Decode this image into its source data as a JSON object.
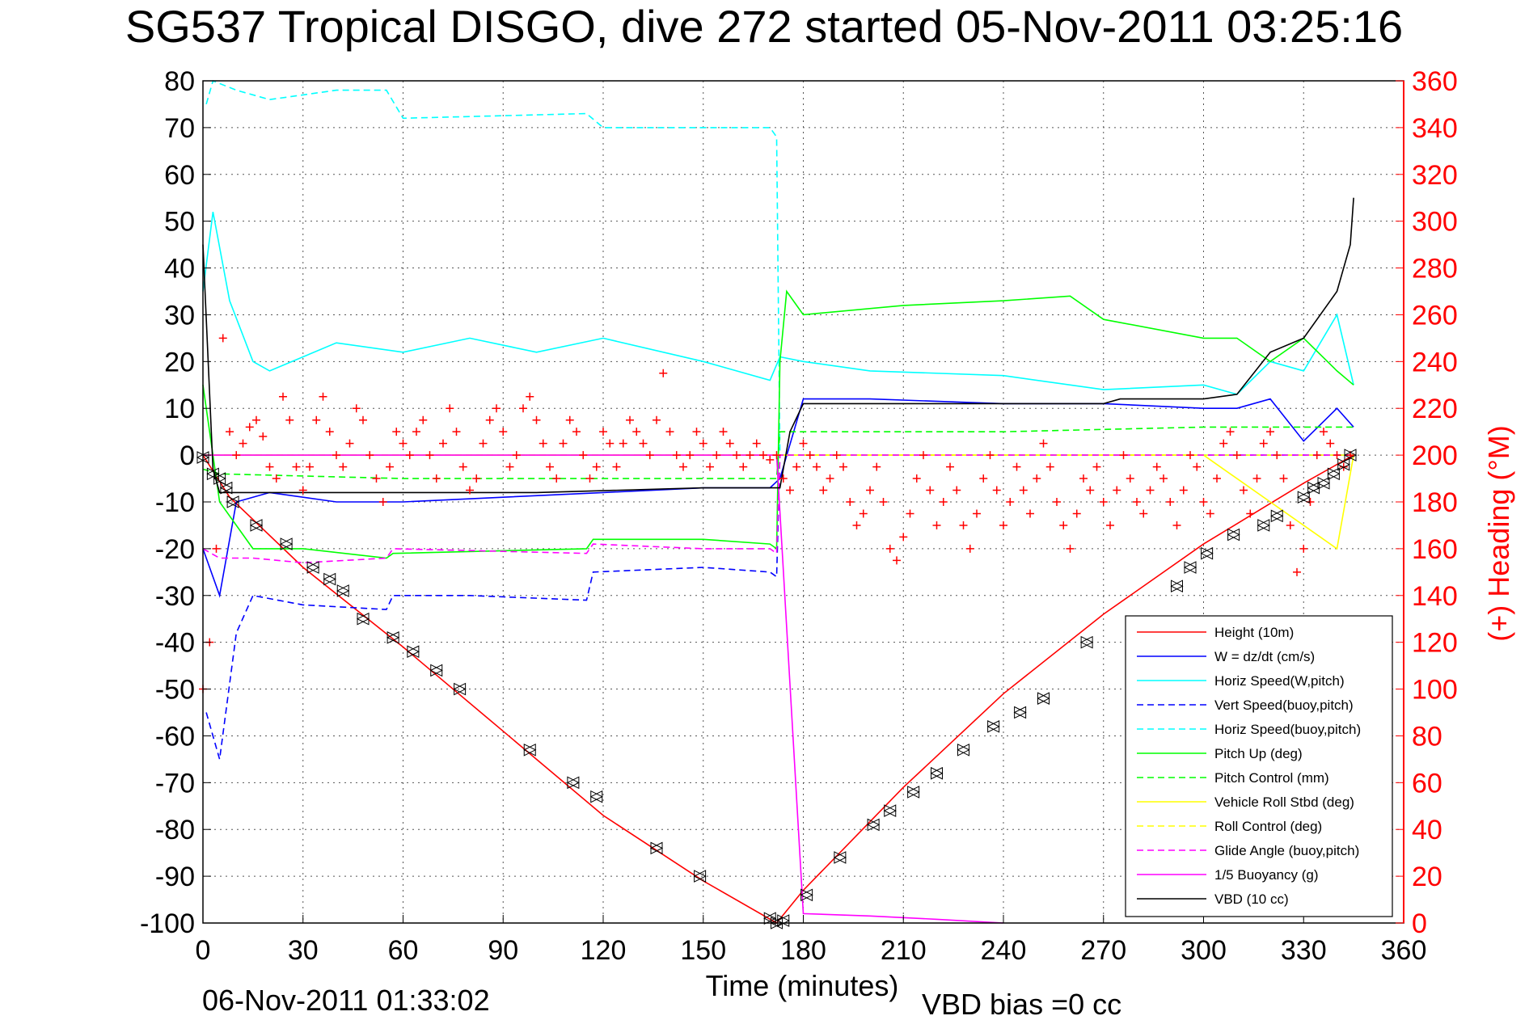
{
  "chart_data": {
    "type": "line",
    "title": "SG537 Tropical DISGO, dive 272 started 05-Nov-2011 03:25:16",
    "xlabel": "Time (minutes)",
    "ylabel_right": "(+) Heading (°M)",
    "footer_left": "06-Nov-2011 01:33:02",
    "footer_right": "VBD bias =0 cc",
    "xlim": [
      0,
      360
    ],
    "ylim": [
      -100,
      80
    ],
    "ylim_right": [
      0,
      360
    ],
    "xticks": [
      "0",
      "30",
      "60",
      "90",
      "120",
      "150",
      "180",
      "210",
      "240",
      "270",
      "300",
      "330",
      "360"
    ],
    "yticks": [
      "80",
      "70",
      "60",
      "50",
      "40",
      "30",
      "20",
      "10",
      "0",
      "-10",
      "-20",
      "-30",
      "-40",
      "-50",
      "-60",
      "-70",
      "-80",
      "-90",
      "-100"
    ],
    "yticks_right": [
      "360",
      "340",
      "320",
      "300",
      "280",
      "260",
      "240",
      "220",
      "200",
      "180",
      "160",
      "140",
      "120",
      "100",
      "80",
      "60",
      "40",
      "20",
      "0"
    ],
    "grid": true,
    "legend_position": "bottom-right",
    "colors": {
      "height": "#ff0000",
      "w": "#0000ff",
      "horiz_speed": "#00ffff",
      "pitch": "#00ff00",
      "roll": "#ffff00",
      "glide": "#ff00ff",
      "vbd": "#000000",
      "heading": "#ff0000"
    },
    "series": [
      {
        "name": "Height (10m)",
        "color": "#ff0000",
        "dash": "solid",
        "x": [
          0,
          8,
          30,
          60,
          90,
          120,
          150,
          172,
          180,
          210,
          240,
          270,
          300,
          330,
          345
        ],
        "y": [
          0,
          -9,
          -24,
          -41,
          -59,
          -77,
          -91,
          -100,
          -93,
          -71,
          -51,
          -34,
          -19,
          -6,
          0
        ]
      },
      {
        "name": "W = dz/dt (cm/s)",
        "color": "#0000ff",
        "dash": "solid",
        "x": [
          0,
          5,
          10,
          20,
          40,
          60,
          90,
          120,
          150,
          170,
          173,
          180,
          200,
          240,
          270,
          300,
          310,
          320,
          330,
          340,
          345
        ],
        "y": [
          -20,
          -30,
          -10,
          -8,
          -10,
          -10,
          -9,
          -8,
          -7,
          -7,
          -5,
          12,
          12,
          11,
          11,
          10,
          10,
          12,
          3,
          10,
          6
        ]
      },
      {
        "name": "Horiz Speed(W,pitch)",
        "color": "#00ffff",
        "dash": "solid",
        "x": [
          0,
          3,
          8,
          15,
          20,
          40,
          60,
          80,
          100,
          120,
          150,
          170,
          173,
          180,
          200,
          240,
          270,
          300,
          310,
          320,
          330,
          340,
          345
        ],
        "y": [
          35,
          52,
          33,
          20,
          18,
          24,
          22,
          25,
          22,
          25,
          20,
          16,
          21,
          20,
          18,
          17,
          14,
          15,
          13,
          20,
          18,
          30,
          15
        ]
      },
      {
        "name": "Vert Speed(buoy,pitch)",
        "color": "#0000ff",
        "dash": "dashed",
        "x": [
          1,
          5,
          10,
          15,
          30,
          55,
          57,
          80,
          115,
          117,
          150,
          170,
          172,
          173,
          345
        ],
        "y": [
          -55,
          -65,
          -38,
          -30,
          -32,
          -33,
          -30,
          -30,
          -31,
          -25,
          -24,
          -25,
          -26,
          0,
          0
        ]
      },
      {
        "name": "Horiz Speed(buoy,pitch)",
        "color": "#00ffff",
        "dash": "dashed",
        "x": [
          1,
          3,
          10,
          20,
          40,
          55,
          60,
          115,
          120,
          170,
          172,
          173,
          345
        ],
        "y": [
          75,
          80,
          78,
          76,
          78,
          78,
          72,
          73,
          70,
          70,
          68,
          0,
          0
        ]
      },
      {
        "name": "Pitch Up (deg)",
        "color": "#00ff00",
        "dash": "solid",
        "x": [
          0,
          5,
          15,
          30,
          55,
          57,
          115,
          117,
          150,
          170,
          172,
          173,
          175,
          180,
          210,
          240,
          260,
          270,
          300,
          310,
          320,
          330,
          340,
          345
        ],
        "y": [
          15,
          -10,
          -20,
          -20,
          -22,
          -21,
          -20,
          -18,
          -18,
          -19,
          -20,
          20,
          35,
          30,
          32,
          33,
          34,
          29,
          25,
          25,
          20,
          25,
          18,
          15
        ]
      },
      {
        "name": "Pitch Control (mm)",
        "color": "#00ff00",
        "dash": "dashed",
        "x": [
          0,
          5,
          60,
          120,
          170,
          172,
          173,
          180,
          240,
          300,
          345
        ],
        "y": [
          -3,
          -4,
          -5,
          -5,
          -5,
          -5,
          5,
          5,
          5,
          6,
          6
        ]
      },
      {
        "name": "Vehicle Roll Stbd (deg)",
        "color": "#ffff00",
        "dash": "solid",
        "x": [
          0,
          20,
          60,
          100,
          150,
          170,
          180,
          240,
          300,
          320,
          340,
          345
        ],
        "y": [
          0,
          0,
          0,
          0,
          0,
          0,
          0,
          0,
          0,
          -10,
          -20,
          0
        ]
      },
      {
        "name": "Roll Control (deg)",
        "color": "#ffff00",
        "dash": "dashed",
        "x": [
          0,
          60,
          120,
          170,
          180,
          240,
          300,
          345
        ],
        "y": [
          0,
          0,
          0,
          0,
          0,
          0,
          0,
          0
        ]
      },
      {
        "name": "Glide Angle (buoy,pitch)",
        "color": "#ff00ff",
        "dash": "dashed",
        "x": [
          0,
          5,
          15,
          30,
          55,
          57,
          115,
          117,
          150,
          170,
          172,
          173,
          345
        ],
        "y": [
          -20,
          -22,
          -22,
          -23,
          -22,
          -20,
          -21,
          -19,
          -20,
          -20,
          -21,
          0,
          0
        ]
      },
      {
        "name": "1/5 Buoyancy (g)",
        "color": "#ff00ff",
        "dash": "solid",
        "x": [
          0,
          172,
          180,
          200,
          220,
          240
        ],
        "y": [
          0,
          0,
          -98,
          -98.5,
          -99.2,
          -100
        ]
      },
      {
        "name": "VBD (10 cc)",
        "color": "#000000",
        "dash": "solid",
        "x": [
          0,
          3,
          5,
          40,
          100,
          150,
          172,
          173,
          176,
          180,
          240,
          270,
          275,
          300,
          310,
          320,
          330,
          340,
          344,
          345
        ],
        "y": [
          45,
          -3,
          -8,
          -8,
          -8,
          -7,
          -7,
          -7,
          5,
          11,
          11,
          11,
          12,
          12,
          13,
          22,
          25,
          35,
          45,
          55
        ]
      }
    ],
    "heading_series": {
      "name": "(+) Heading",
      "marker": "+",
      "x": [
        0,
        2,
        4,
        6,
        8,
        10,
        12,
        14,
        16,
        18,
        20,
        22,
        24,
        26,
        28,
        30,
        32,
        34,
        36,
        38,
        40,
        42,
        44,
        46,
        48,
        50,
        52,
        54,
        56,
        58,
        60,
        62,
        64,
        66,
        68,
        70,
        72,
        74,
        76,
        78,
        80,
        82,
        84,
        86,
        88,
        90,
        92,
        94,
        96,
        98,
        100,
        102,
        104,
        106,
        108,
        110,
        112,
        114,
        116,
        118,
        120,
        122,
        124,
        126,
        128,
        130,
        132,
        134,
        136,
        138,
        140,
        142,
        144,
        146,
        148,
        150,
        152,
        154,
        156,
        158,
        160,
        162,
        164,
        166,
        168,
        170,
        172,
        174,
        176,
        178,
        180,
        182,
        184,
        186,
        188,
        190,
        192,
        194,
        196,
        198,
        200,
        202,
        204,
        206,
        208,
        210,
        212,
        214,
        216,
        218,
        220,
        222,
        224,
        226,
        228,
        230,
        232,
        234,
        236,
        238,
        240,
        242,
        244,
        246,
        248,
        250,
        252,
        254,
        256,
        258,
        260,
        262,
        264,
        266,
        268,
        270,
        272,
        274,
        276,
        278,
        280,
        282,
        284,
        286,
        288,
        290,
        292,
        294,
        296,
        298,
        300,
        302,
        304,
        306,
        308,
        310,
        312,
        314,
        316,
        318,
        320,
        322,
        324,
        326,
        328,
        330,
        332,
        334,
        336,
        338,
        340,
        342,
        344
      ],
      "y": [
        100,
        120,
        160,
        250,
        210,
        200,
        205,
        212,
        215,
        208,
        195,
        190,
        225,
        215,
        195,
        185,
        195,
        215,
        225,
        210,
        200,
        195,
        205,
        220,
        215,
        200,
        190,
        180,
        195,
        210,
        205,
        200,
        210,
        215,
        200,
        190,
        205,
        220,
        210,
        195,
        185,
        190,
        205,
        215,
        220,
        210,
        195,
        200,
        220,
        225,
        215,
        205,
        195,
        190,
        205,
        215,
        210,
        200,
        190,
        195,
        210,
        205,
        195,
        205,
        215,
        210,
        205,
        200,
        215,
        235,
        210,
        200,
        195,
        200,
        210,
        205,
        195,
        200,
        210,
        205,
        200,
        195,
        200,
        205,
        200,
        198,
        200,
        190,
        185,
        195,
        205,
        200,
        195,
        185,
        190,
        200,
        195,
        180,
        170,
        175,
        185,
        195,
        180,
        160,
        155,
        165,
        175,
        190,
        200,
        185,
        170,
        180,
        195,
        185,
        170,
        160,
        175,
        190,
        200,
        185,
        170,
        180,
        195,
        185,
        175,
        190,
        205,
        195,
        180,
        170,
        160,
        175,
        190,
        185,
        195,
        180,
        170,
        185,
        200,
        190,
        180,
        175,
        185,
        195,
        190,
        180,
        170,
        185,
        200,
        195,
        180,
        175,
        190,
        205,
        210,
        200,
        185,
        175,
        190,
        205,
        210,
        200,
        190,
        170,
        150,
        160,
        180,
        200,
        210,
        205,
        200,
        195,
        200
      ]
    },
    "height_markers": {
      "x": [
        0,
        3,
        5,
        7,
        9,
        16,
        25,
        33,
        38,
        42,
        48,
        57,
        63,
        70,
        77,
        98,
        111,
        118,
        136,
        149,
        170,
        172,
        174,
        181,
        191,
        201,
        206,
        213,
        220,
        228,
        237,
        245,
        252,
        265,
        279,
        292,
        296,
        301,
        309,
        318,
        322,
        330,
        333,
        336,
        339,
        342,
        344
      ],
      "y": [
        -0.5,
        -4,
        -5,
        -7,
        -10,
        -15,
        -19,
        -24,
        -26.5,
        -29,
        -35,
        -39,
        -42,
        -46,
        -50,
        -63,
        -70,
        -73,
        -84,
        -90,
        -99,
        -100,
        -99.5,
        -94,
        -86,
        -79,
        -76,
        -72,
        -68,
        -63,
        -58,
        -55,
        -52,
        -40,
        -36,
        -28,
        -24,
        -21,
        -17,
        -15,
        -13,
        -9,
        -7,
        -6,
        -4,
        -2,
        0
      ]
    },
    "legend": [
      {
        "label": "Height (10m)",
        "color": "#ff0000",
        "dash": "solid"
      },
      {
        "label": "W = dz/dt (cm/s)",
        "color": "#0000ff",
        "dash": "solid"
      },
      {
        "label": "Horiz Speed(W,pitch)",
        "color": "#00ffff",
        "dash": "solid"
      },
      {
        "label": "Vert Speed(buoy,pitch)",
        "color": "#0000ff",
        "dash": "dashed"
      },
      {
        "label": "Horiz Speed(buoy,pitch)",
        "color": "#00ffff",
        "dash": "dashed"
      },
      {
        "label": "Pitch Up (deg)",
        "color": "#00ff00",
        "dash": "solid"
      },
      {
        "label": "Pitch Control (mm)",
        "color": "#00ff00",
        "dash": "dashed"
      },
      {
        "label": "Vehicle Roll Stbd (deg)",
        "color": "#ffff00",
        "dash": "solid"
      },
      {
        "label": "Roll Control (deg)",
        "color": "#ffff00",
        "dash": "dashed"
      },
      {
        "label": "Glide Angle (buoy,pitch)",
        "color": "#ff00ff",
        "dash": "dashed"
      },
      {
        "label": "1/5 Buoyancy (g)",
        "color": "#ff00ff",
        "dash": "solid"
      },
      {
        "label": "VBD (10 cc)",
        "color": "#000000",
        "dash": "solid"
      }
    ]
  }
}
